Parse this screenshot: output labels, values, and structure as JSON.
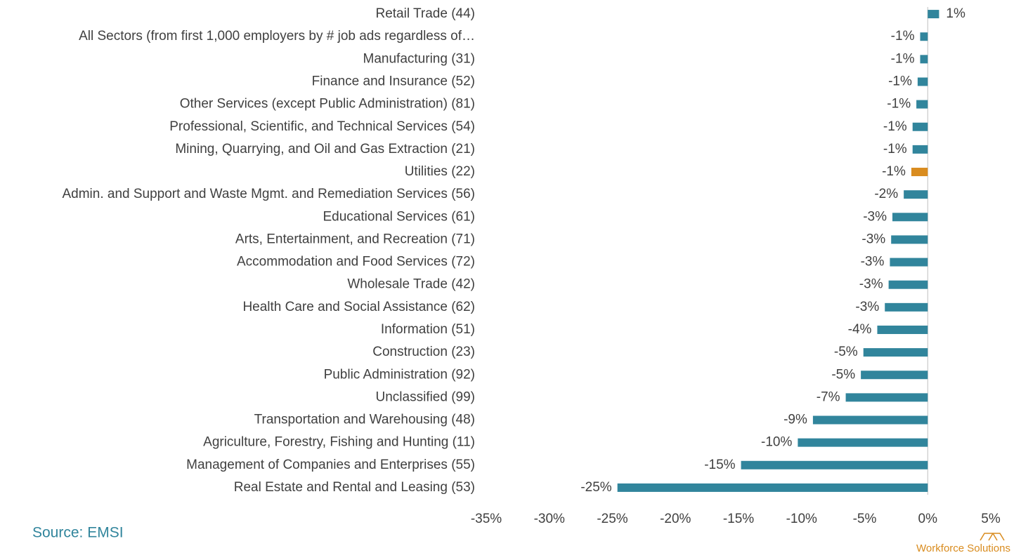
{
  "chart_data": {
    "type": "hbar",
    "categories": [
      "Retail Trade (44)",
      "All Sectors (from first 1,000 employers by # job ads regardless of…",
      "Manufacturing (31)",
      "Finance and Insurance (52)",
      "Other Services (except Public Administration) (81)",
      "Professional, Scientific, and Technical Services (54)",
      "Mining, Quarrying, and Oil and Gas Extraction (21)",
      "Utilities (22)",
      "Admin. and Support and Waste Mgmt. and Remediation Services (56)",
      "Educational Services (61)",
      "Arts, Entertainment, and Recreation (71)",
      "Accommodation and Food Services (72)",
      "Wholesale Trade (42)",
      "Health Care and Social Assistance (62)",
      "Information (51)",
      "Construction (23)",
      "Public Administration (92)",
      "Unclassified (99)",
      "Transportation and Warehousing (48)",
      "Agriculture, Forestry, Fishing and Hunting (11)",
      "Management of Companies and Enterprises (55)",
      "Real Estate and Rental and Leasing (53)"
    ],
    "values": [
      0.9,
      -0.6,
      -0.6,
      -0.8,
      -0.9,
      -1.2,
      -1.2,
      -1.3,
      -1.9,
      -2.8,
      -2.9,
      -3.0,
      -3.1,
      -3.4,
      -4.0,
      -5.1,
      -5.3,
      -6.5,
      -9.1,
      -10.3,
      -14.8,
      -24.6
    ],
    "value_labels": [
      "1%",
      "-1%",
      "-1%",
      "-1%",
      "-1%",
      "-1%",
      "-1%",
      "-1%",
      "-2%",
      "-3%",
      "-3%",
      "-3%",
      "-3%",
      "-3%",
      "-4%",
      "-5%",
      "-5%",
      "-7%",
      "-9%",
      "-10%",
      "-15%",
      "-25%"
    ],
    "colors": [
      "#31859c",
      "#31859c",
      "#31859c",
      "#31859c",
      "#31859c",
      "#31859c",
      "#31859c",
      "#d98c1f",
      "#31859c",
      "#31859c",
      "#31859c",
      "#31859c",
      "#31859c",
      "#31859c",
      "#31859c",
      "#31859c",
      "#31859c",
      "#31859c",
      "#31859c",
      "#31859c",
      "#31859c",
      "#31859c"
    ],
    "xlim": [
      -35,
      5
    ],
    "xticks": [
      {
        "value": -35,
        "label": "-35%"
      },
      {
        "value": -30,
        "label": "-30%"
      },
      {
        "value": -25,
        "label": "-25%"
      },
      {
        "value": -20,
        "label": "-20%"
      },
      {
        "value": -15,
        "label": "-15%"
      },
      {
        "value": -10,
        "label": "-10%"
      },
      {
        "value": -5,
        "label": "-5%"
      },
      {
        "value": 0,
        "label": "0%"
      },
      {
        "value": 5,
        "label": "5%"
      }
    ],
    "grid": false,
    "source": "Source: EMSI",
    "logo": "Workforce Solutions"
  }
}
